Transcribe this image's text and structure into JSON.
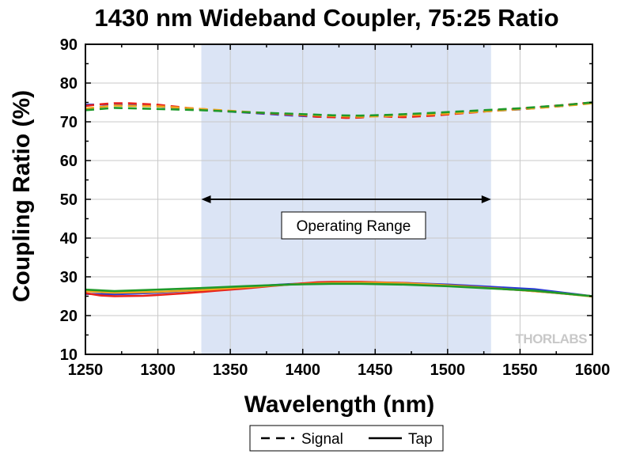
{
  "chart_data": {
    "type": "line",
    "title": "1430 nm Wideband Coupler, 75:25 Ratio",
    "xlabel": "Wavelength (nm)",
    "ylabel": "Coupling Ratio (%)",
    "xlim": [
      1250,
      1600
    ],
    "ylim": [
      10,
      90
    ],
    "xticks": [
      1250,
      1300,
      1350,
      1400,
      1450,
      1500,
      1550,
      1600
    ],
    "yticks": [
      10,
      20,
      30,
      40,
      50,
      60,
      70,
      80,
      90
    ],
    "grid": true,
    "operating_range": {
      "x": [
        1330,
        1530
      ],
      "label": "Operating Range",
      "color": "#dbe4f5"
    },
    "legend": {
      "placement": "bottom",
      "items": [
        {
          "label": "Signal",
          "style": "dashed"
        },
        {
          "label": "Tap",
          "style": "solid"
        }
      ]
    },
    "series": [
      {
        "group": "Signal",
        "color": "#2a3bd6",
        "style": "dashed",
        "x": [
          1250,
          1270,
          1300,
          1330,
          1360,
          1390,
          1410,
          1430,
          1460,
          1490,
          1520,
          1550,
          1580,
          1600
        ],
        "y": [
          74.4,
          74.5,
          74.0,
          73.1,
          72.4,
          71.7,
          71.3,
          71.2,
          71.6,
          72.0,
          72.6,
          73.2,
          74.1,
          75.0
        ]
      },
      {
        "group": "Signal",
        "color": "#e8231c",
        "style": "dashed",
        "x": [
          1250,
          1260,
          1270,
          1280,
          1300,
          1320,
          1340,
          1360,
          1380,
          1400,
          1410,
          1420,
          1430,
          1440,
          1450,
          1460,
          1470,
          1480,
          1490,
          1500,
          1520,
          1540,
          1560,
          1580,
          1600
        ],
        "y": [
          74.1,
          74.5,
          74.8,
          74.8,
          74.4,
          73.6,
          73.0,
          72.5,
          72.1,
          71.7,
          71.3,
          71.2,
          71.0,
          71.1,
          71.5,
          71.3,
          71.2,
          71.4,
          71.6,
          71.9,
          72.5,
          73.1,
          73.7,
          74.3,
          75.0
        ]
      },
      {
        "group": "Signal",
        "color": "#f0a61c",
        "style": "dashed",
        "x": [
          1250,
          1270,
          1300,
          1330,
          1360,
          1390,
          1420,
          1440,
          1460,
          1480,
          1500,
          1530,
          1560,
          1590,
          1600
        ],
        "y": [
          73.4,
          74.2,
          74.0,
          73.3,
          72.6,
          72.0,
          71.5,
          71.3,
          71.5,
          71.8,
          72.1,
          72.8,
          73.5,
          74.4,
          74.8
        ]
      },
      {
        "group": "Signal",
        "color": "#1f9a2a",
        "style": "dashed",
        "x": [
          1250,
          1270,
          1300,
          1330,
          1360,
          1390,
          1420,
          1440,
          1460,
          1490,
          1520,
          1550,
          1580,
          1600
        ],
        "y": [
          73.0,
          73.6,
          73.3,
          73.0,
          72.5,
          72.1,
          71.7,
          71.6,
          71.8,
          72.3,
          72.9,
          73.5,
          74.3,
          75.0
        ]
      },
      {
        "group": "Tap",
        "color": "#2a3bd6",
        "style": "solid",
        "x": [
          1250,
          1270,
          1300,
          1330,
          1360,
          1390,
          1420,
          1440,
          1470,
          1500,
          1530,
          1560,
          1600
        ],
        "y": [
          25.6,
          25.5,
          25.9,
          26.6,
          27.4,
          28.1,
          28.5,
          28.6,
          28.4,
          28.0,
          27.4,
          26.8,
          25.0
        ]
      },
      {
        "group": "Tap",
        "color": "#e8231c",
        "style": "solid",
        "x": [
          1250,
          1260,
          1270,
          1290,
          1300,
          1320,
          1340,
          1360,
          1380,
          1400,
          1410,
          1420,
          1430,
          1440,
          1450,
          1470,
          1490,
          1510,
          1530,
          1550,
          1570,
          1600
        ],
        "y": [
          25.8,
          25.2,
          25.0,
          25.1,
          25.3,
          25.8,
          26.4,
          27.0,
          27.7,
          28.3,
          28.6,
          28.7,
          28.7,
          28.7,
          28.6,
          28.4,
          28.0,
          27.6,
          27.1,
          26.6,
          26.0,
          25.0
        ]
      },
      {
        "group": "Tap",
        "color": "#f0a61c",
        "style": "solid",
        "x": [
          1250,
          1270,
          1300,
          1330,
          1360,
          1390,
          1420,
          1440,
          1460,
          1490,
          1520,
          1550,
          1580,
          1600
        ],
        "y": [
          26.3,
          25.9,
          26.1,
          26.6,
          27.3,
          28.0,
          28.4,
          28.5,
          28.4,
          28.0,
          27.3,
          26.6,
          25.7,
          24.9
        ]
      },
      {
        "group": "Tap",
        "color": "#1f9a2a",
        "style": "solid",
        "x": [
          1250,
          1270,
          1300,
          1330,
          1360,
          1390,
          1420,
          1440,
          1470,
          1500,
          1530,
          1560,
          1600
        ],
        "y": [
          26.7,
          26.3,
          26.7,
          27.1,
          27.6,
          28.0,
          28.2,
          28.2,
          28.0,
          27.6,
          27.0,
          26.4,
          25.0
        ]
      }
    ]
  },
  "watermark": "THORLABS"
}
